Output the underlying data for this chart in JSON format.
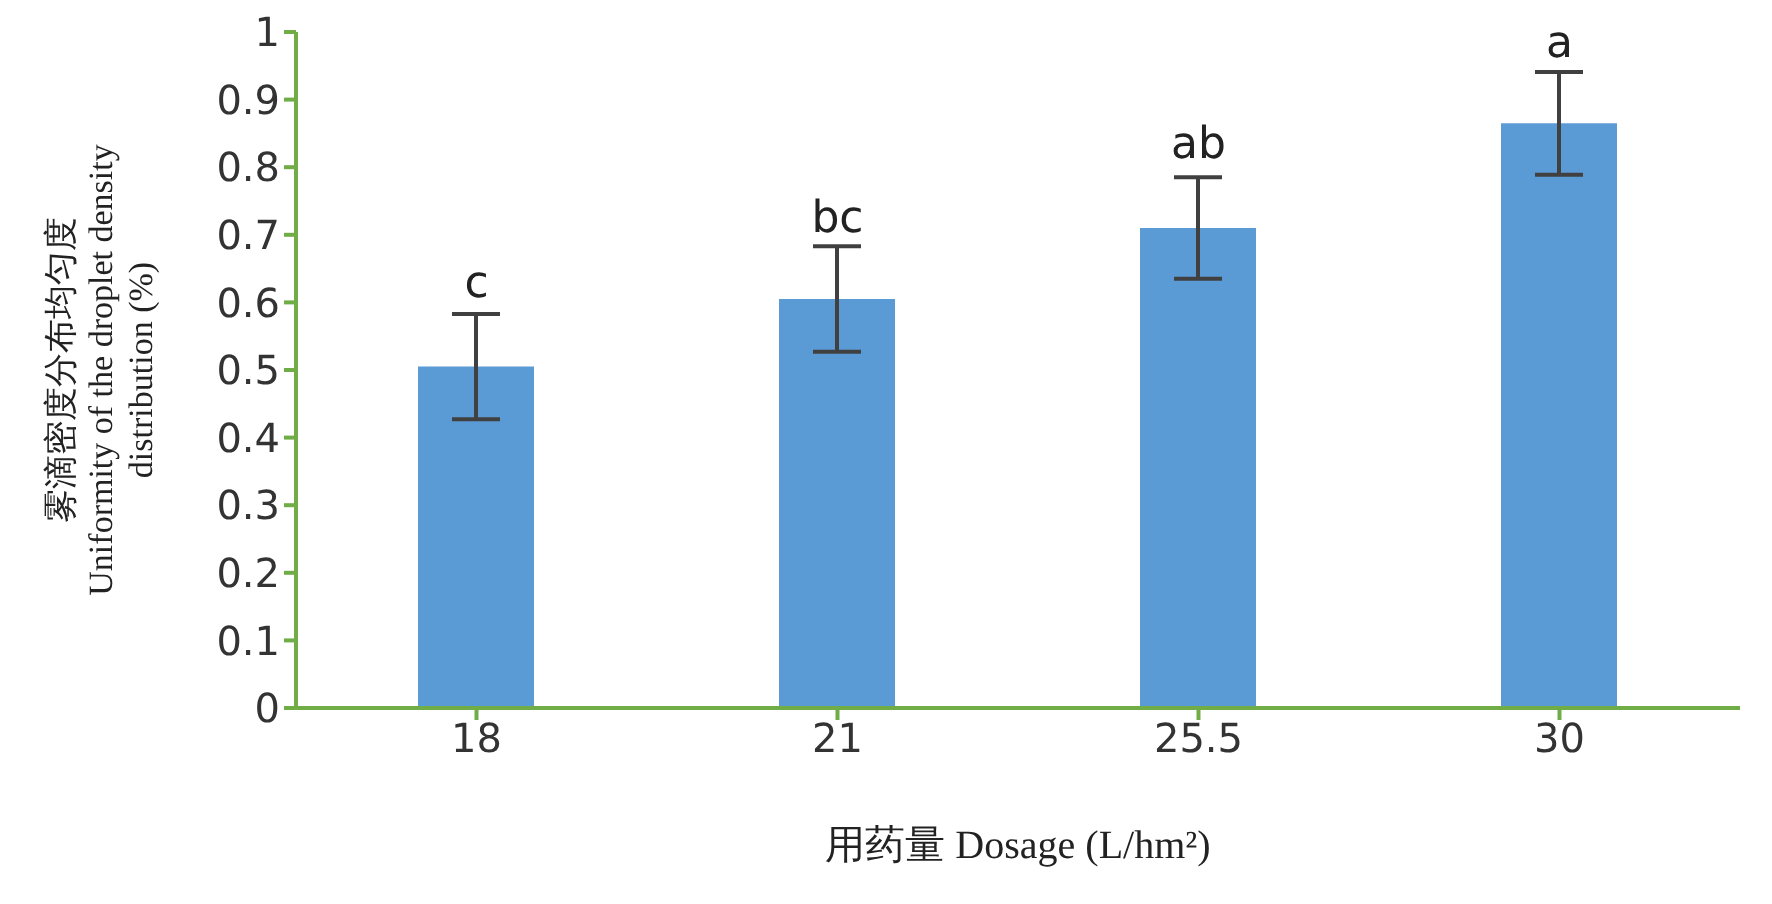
{
  "chart_data": {
    "type": "bar",
    "xlabel": "用药量 Dosage (L/hm²)",
    "ylabel": "雾滴密度分布均匀度\nUniformity of the droplet density\ndistribution (%)",
    "categories": [
      "18",
      "21",
      "25.5",
      "30"
    ],
    "values": [
      0.505,
      0.605,
      0.71,
      0.865
    ],
    "errors": [
      0.078,
      0.078,
      0.075,
      0.076
    ],
    "color": "#5b9bd5",
    "ylim": [
      0,
      1
    ],
    "yticks": [
      0,
      0.1,
      0.2,
      0.3,
      0.4,
      0.5,
      0.6,
      0.7,
      0.8,
      0.9,
      1
    ],
    "grid": false,
    "legend": false,
    "annotations": [
      {
        "text": "c",
        "x": "18",
        "y": 0.585
      },
      {
        "text": "bc",
        "x": "21",
        "y": 0.68
      },
      {
        "text": "ab",
        "x": "25.5",
        "y": 0.79
      },
      {
        "text": "a",
        "x": "30",
        "y": 0.94
      }
    ]
  }
}
